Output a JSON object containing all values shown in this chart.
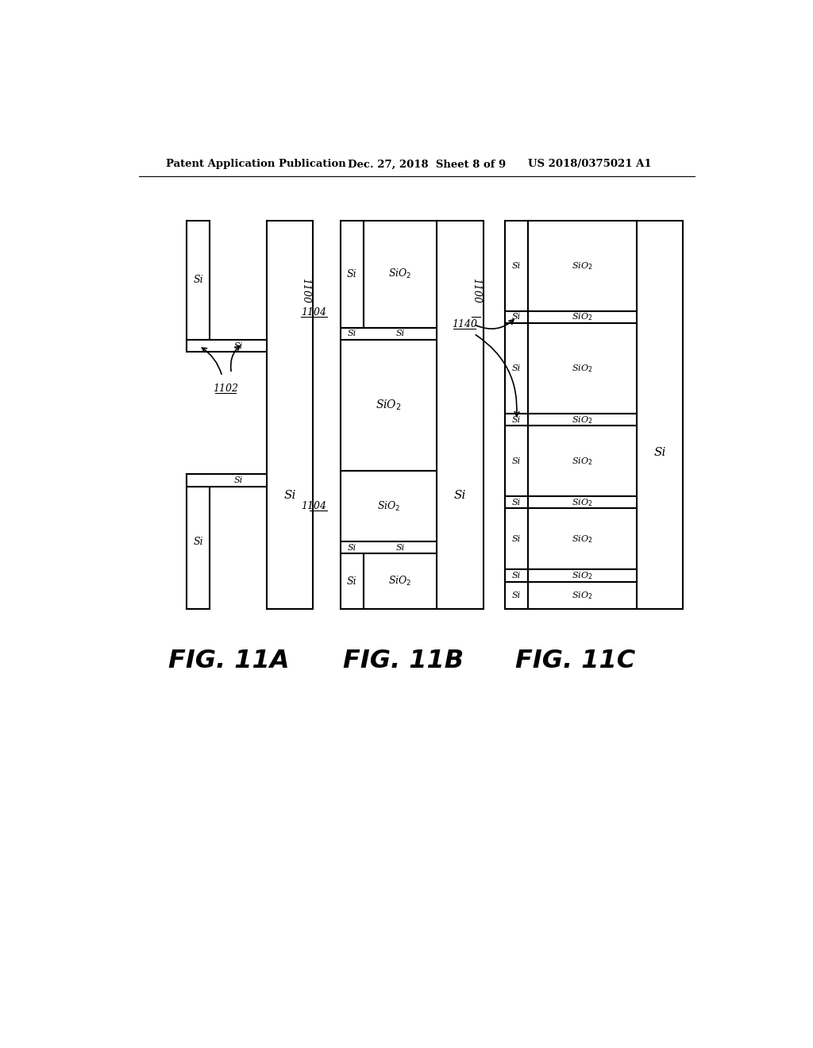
{
  "bg_color": "#ffffff",
  "header_left": "Patent Application Publication",
  "header_mid": "Dec. 27, 2018  Sheet 8 of 9",
  "header_right": "US 2018/0375021 A1"
}
